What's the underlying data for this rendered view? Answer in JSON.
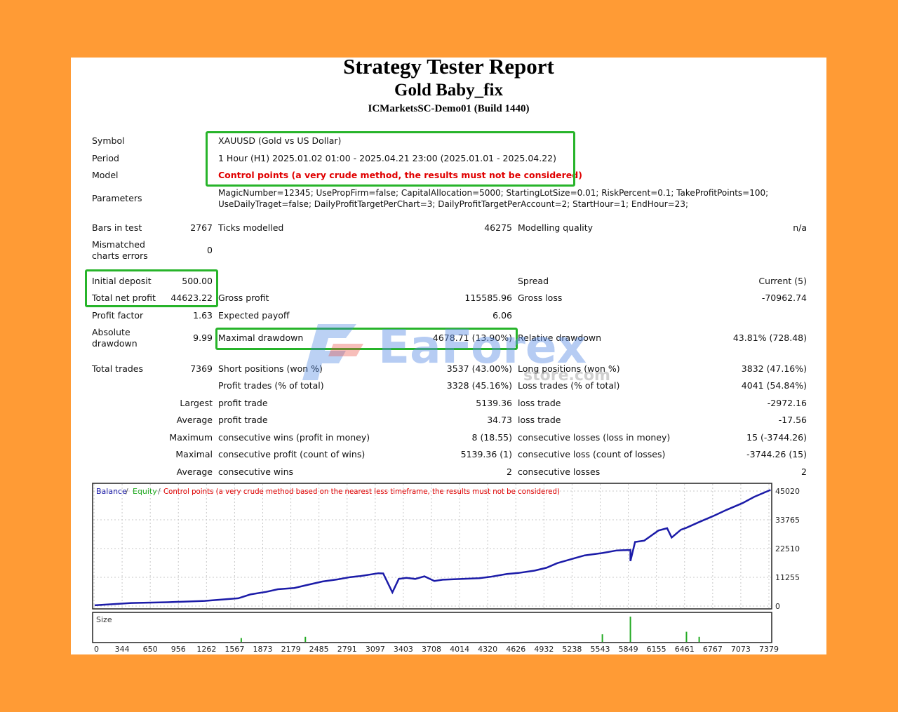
{
  "header": {
    "title": "Strategy Tester Report",
    "ea_name": "Gold Baby_fix",
    "server": "ICMarketsSC-Demo01 (Build 1440)"
  },
  "settings": {
    "symbol_label": "Symbol",
    "symbol_value": "XAUUSD (Gold vs US Dollar)",
    "period_label": "Period",
    "period_value": "1 Hour (H1) 2025.01.02 01:00 - 2025.04.21 23:00 (2025.01.01 - 2025.04.22)",
    "model_label": "Model",
    "model_value": "Control points (a very crude method, the results must not be considered)",
    "parameters_label": "Parameters",
    "parameters_line1": "MagicNumber=12345; UsePropFirm=false; CapitalAllocation=5000; StartingLotSize=0.01; RiskPercent=0.1; TakeProfitPoints=100;",
    "parameters_line2": "UseDailyTraget=false; DailyProfitTargetPerChart=3; DailyProfitTargetPerAccount=2; StartHour=1; EndHour=23;"
  },
  "stats": {
    "bars_label": "Bars in test",
    "bars_value": "2767",
    "ticks_label": "Ticks modelled",
    "ticks_value": "46275",
    "quality_label": "Modelling quality",
    "quality_value": "n/a",
    "mismatch_label_1": "Mismatched",
    "mismatch_label_2": "charts errors",
    "mismatch_value": "0",
    "deposit_label": "Initial deposit",
    "deposit_value": "500.00",
    "spread_label": "Spread",
    "spread_value": "Current (5)",
    "net_label": "Total net profit",
    "net_value": "44623.22",
    "gross_profit_label": "Gross profit",
    "gross_profit_value": "115585.96",
    "gross_loss_label": "Gross loss",
    "gross_loss_value": "-70962.74",
    "pf_label": "Profit factor",
    "pf_value": "1.63",
    "payoff_label": "Expected payoff",
    "payoff_value": "6.06",
    "abs_dd_label_1": "Absolute",
    "abs_dd_label_2": "drawdown",
    "abs_dd_value": "9.99",
    "max_dd_label": "Maximal drawdown",
    "max_dd_value": "4678.71 (13.90%)",
    "rel_dd_label": "Relative drawdown",
    "rel_dd_value": "43.81% (728.48)",
    "trades_label": "Total trades",
    "trades_value": "7369",
    "short_label": "Short positions (won %)",
    "short_value": "3537 (43.00%)",
    "long_label": "Long positions (won %)",
    "long_value": "3832 (47.16%)",
    "profit_trades_label": "Profit trades (% of total)",
    "profit_trades_value": "3328 (45.16%)",
    "loss_trades_label": "Loss trades (% of total)",
    "loss_trades_value": "4041 (54.84%)",
    "largest_label": "Largest",
    "largest_profit_label": "profit trade",
    "largest_profit_value": "5139.36",
    "largest_loss_label": "loss trade",
    "largest_loss_value": "-2972.16",
    "average_label": "Average",
    "avg_profit_label": "profit trade",
    "avg_profit_value": "34.73",
    "avg_loss_label": "loss trade",
    "avg_loss_value": "-17.56",
    "maximum_label": "Maximum",
    "max_wins_label": "consecutive wins (profit in money)",
    "max_wins_value": "8 (18.55)",
    "max_losses_label": "consecutive losses (loss in money)",
    "max_losses_value": "15 (-3744.26)",
    "maximal_label": "Maximal",
    "maximal_profit_label": "consecutive profit (count of wins)",
    "maximal_profit_value": "5139.36 (1)",
    "maximal_loss_label": "consecutive loss (count of losses)",
    "maximal_loss_value": "-3744.26 (15)",
    "average2_label": "Average",
    "avg_wins_label": "consecutive wins",
    "avg_wins_value": "2",
    "avg_losses_label": "consecutive losses",
    "avg_losses_value": "2"
  },
  "watermark": {
    "brand": "EaForex",
    "sub": "store.com"
  },
  "colors": {
    "accent_box": "#27B42A",
    "balance": "#1B1BA8",
    "equity": "#22AA22",
    "warning": "#E00000",
    "background": "#FF9B35"
  },
  "chart_data": {
    "type": "line",
    "legend_balance": "Balance",
    "legend_equity": "Equity",
    "legend_control": "Control points (a very crude method based on the nearest less timeframe, the results must not be considered)",
    "size_label": "Size",
    "y_ticks": [
      "45020",
      "33765",
      "22510",
      "11255",
      "0"
    ],
    "ylim": [
      0,
      45020
    ],
    "x_ticks": [
      "0",
      "344",
      "650",
      "956",
      "1262",
      "1567",
      "1873",
      "2179",
      "2485",
      "2791",
      "3097",
      "3403",
      "3708",
      "4014",
      "4320",
      "4626",
      "4932",
      "5238",
      "5543",
      "5849",
      "6155",
      "6461",
      "6767",
      "7073",
      "7379"
    ],
    "xlim": [
      0,
      7369
    ],
    "series": [
      {
        "name": "Balance",
        "x": [
          0,
          400,
          800,
          1200,
          1567,
          1700,
          1873,
          2000,
          2179,
          2300,
          2485,
          2650,
          2791,
          2900,
          3097,
          3150,
          3250,
          3320,
          3403,
          3500,
          3600,
          3708,
          3800,
          4014,
          4200,
          4320,
          4500,
          4626,
          4800,
          4932,
          5050,
          5238,
          5350,
          5543,
          5700,
          5849,
          5849,
          5900,
          6000,
          6155,
          6250,
          6300,
          6400,
          6461,
          6600,
          6767,
          6900,
          7073,
          7200,
          7379
        ],
        "y": [
          300,
          1200,
          1500,
          2000,
          3000,
          4500,
          5500,
          6500,
          7000,
          8000,
          9500,
          10300,
          11200,
          11600,
          12700,
          12600,
          5300,
          10500,
          10900,
          10500,
          11500,
          9700,
          10200,
          10500,
          10800,
          11300,
          12400,
          12800,
          13700,
          14800,
          16600,
          18500,
          19600,
          20500,
          21500,
          21700,
          17400,
          24800,
          25300,
          29200,
          30100,
          26500,
          29500,
          30300,
          32500,
          35000,
          37200,
          39800,
          42200,
          44900
        ]
      }
    ],
    "size_spikes": [
      {
        "x": 5849,
        "h": 1.0
      },
      {
        "x": 5543,
        "h": 0.3
      },
      {
        "x": 6461,
        "h": 0.4
      },
      {
        "x": 6600,
        "h": 0.2
      },
      {
        "x": 2300,
        "h": 0.2
      },
      {
        "x": 1600,
        "h": 0.15
      }
    ]
  }
}
